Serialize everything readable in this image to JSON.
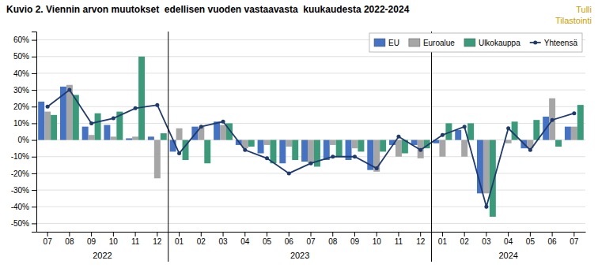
{
  "chart_data": {
    "type": "bar",
    "title": "Kuvio 2. Viennin arvon muutokset  edellisen vuoden vastaavasta  kuukaudesta 2022-2024",
    "categories": [
      "07",
      "08",
      "09",
      "10",
      "11",
      "12",
      "01",
      "02",
      "03",
      "04",
      "05",
      "06",
      "07",
      "08",
      "09",
      "10",
      "11",
      "12",
      "01",
      "02",
      "03",
      "04",
      "05",
      "06",
      "07"
    ],
    "series": [
      {
        "name": "EU",
        "type": "bar",
        "color": "#4472C4",
        "values": [
          0.23,
          0.32,
          0.08,
          0.09,
          0.01,
          0.02,
          -0.07,
          0.08,
          0.11,
          -0.03,
          -0.08,
          -0.14,
          -0.13,
          -0.12,
          -0.12,
          -0.18,
          -0.03,
          -0.03,
          -0.02,
          0.06,
          -0.32,
          0.0,
          -0.05,
          0.14,
          0.08
        ]
      },
      {
        "name": "Euroalue",
        "type": "bar",
        "color": "#A6A6A6",
        "values": [
          0.17,
          0.33,
          0.03,
          0.02,
          0.02,
          -0.23,
          0.07,
          0.08,
          0.09,
          -0.05,
          -0.03,
          -0.04,
          -0.14,
          -0.03,
          -0.05,
          -0.19,
          -0.1,
          -0.11,
          -0.1,
          -0.1,
          -0.32,
          -0.02,
          -0.05,
          0.25,
          0.08
        ]
      },
      {
        "name": "Ulkokauppa",
        "type": "bar",
        "color": "#3A9B7A",
        "values": [
          0.15,
          0.27,
          0.16,
          0.17,
          0.5,
          0.04,
          -0.12,
          -0.14,
          0.1,
          -0.04,
          -0.14,
          -0.12,
          -0.16,
          -0.1,
          -0.07,
          -0.07,
          -0.08,
          -0.05,
          0.1,
          0.1,
          -0.46,
          0.11,
          0.12,
          -0.04,
          0.21
        ]
      },
      {
        "name": "Yhteensä",
        "type": "line",
        "color": "#1F3A6E",
        "marker": "circle",
        "values": [
          0.2,
          0.3,
          0.1,
          0.13,
          0.19,
          0.21,
          -0.08,
          0.08,
          0.11,
          -0.06,
          -0.11,
          -0.2,
          -0.14,
          -0.1,
          -0.1,
          -0.17,
          0.02,
          -0.06,
          0.03,
          0.08,
          -0.4,
          0.07,
          -0.06,
          0.12,
          0.16
        ]
      }
    ],
    "ylim": [
      -0.55,
      0.65
    ],
    "yticks": [
      {
        "value": -0.5,
        "label": "-50%"
      },
      {
        "value": -0.4,
        "label": "-40%"
      },
      {
        "value": -0.3,
        "label": "-30%"
      },
      {
        "value": -0.2,
        "label": "-20%"
      },
      {
        "value": -0.1,
        "label": "-10%"
      },
      {
        "value": 0.0,
        "label": "0%"
      },
      {
        "value": 0.1,
        "label": "10%"
      },
      {
        "value": 0.2,
        "label": "20%"
      },
      {
        "value": 0.3,
        "label": "30%"
      },
      {
        "value": 0.4,
        "label": "40%"
      },
      {
        "value": 0.5,
        "label": "50%"
      },
      {
        "value": 0.6,
        "label": "60%"
      }
    ],
    "grid": true,
    "legend": "upper right",
    "annotations": [
      {
        "text": "2022",
        "x": 2.5
      },
      {
        "text": "2023",
        "x": 11.5
      },
      {
        "text": "2024",
        "x": 21.0
      },
      {
        "type": "vline",
        "x": 5.5
      },
      {
        "type": "vline",
        "x": 17.5
      },
      {
        "text": "Tulli",
        "color": "#C8A000"
      },
      {
        "text": "Tilastointi",
        "color": "#C8A000"
      }
    ]
  }
}
